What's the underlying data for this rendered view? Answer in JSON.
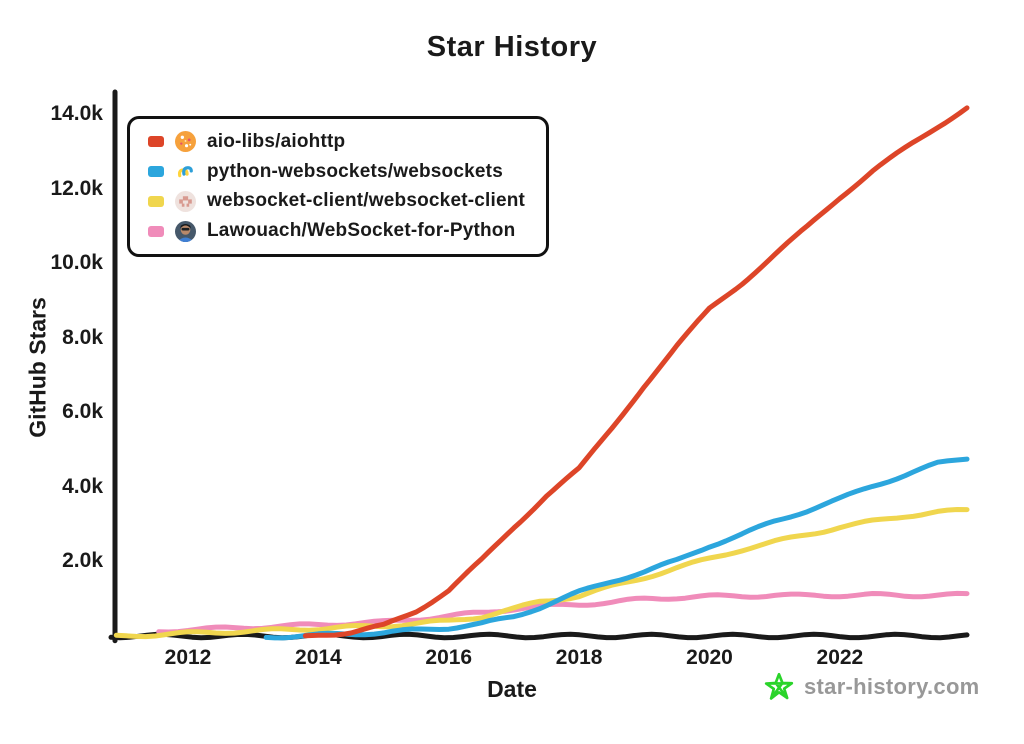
{
  "title": "Star History",
  "watermark": {
    "label": "star-history.com",
    "star_icon": "hand-drawn-star-icon",
    "icon_color": "#2ad42a",
    "text_color": "#989898"
  },
  "legend": {
    "items": [
      {
        "name": "aio-libs/aiohttp",
        "color": "#dd4528",
        "avatar_icon": "aio-libs-avatar-icon"
      },
      {
        "name": "python-websockets/websockets",
        "color": "#2ca6dd",
        "avatar_icon": "websockets-avatar-icon"
      },
      {
        "name": "websocket-client/websocket-client",
        "color": "#f0d64e",
        "avatar_icon": "websocket-client-avatar-icon"
      },
      {
        "name": "Lawouach/WebSocket-for-Python",
        "color": "#f08cba",
        "avatar_icon": "lawouach-avatar-icon"
      }
    ]
  },
  "chart_data": {
    "type": "line",
    "style": "hand-drawn-xkcd",
    "title": "Star History",
    "xlabel": "Date",
    "ylabel": "GitHub Stars",
    "xlim": [
      2010.88,
      2023.95
    ],
    "ylim": [
      0,
      14540
    ],
    "grid": false,
    "legend_position": "top-left",
    "axis_color": "#1a1a1a",
    "x_ticks": [
      {
        "value": 2012,
        "label": "2012"
      },
      {
        "value": 2014,
        "label": "2014"
      },
      {
        "value": 2016,
        "label": "2016"
      },
      {
        "value": 2018,
        "label": "2018"
      },
      {
        "value": 2020,
        "label": "2020"
      },
      {
        "value": 2022,
        "label": "2022"
      }
    ],
    "y_ticks": [
      {
        "value": 2000,
        "label": "2.0k"
      },
      {
        "value": 4000,
        "label": "4.0k"
      },
      {
        "value": 6000,
        "label": "6.0k"
      },
      {
        "value": 8000,
        "label": "8.0k"
      },
      {
        "value": 10000,
        "label": "10.0k"
      },
      {
        "value": 12000,
        "label": "12.0k"
      },
      {
        "value": 14000,
        "label": "14.0k"
      }
    ],
    "series": [
      {
        "name": "aio-libs/aiohttp",
        "color": "#dd4528",
        "points": [
          [
            2013.8,
            0
          ],
          [
            2014,
            50
          ],
          [
            2014.5,
            130
          ],
          [
            2015,
            300
          ],
          [
            2015.5,
            700
          ],
          [
            2016,
            1250
          ],
          [
            2016.5,
            2050
          ],
          [
            2017,
            2950
          ],
          [
            2017.5,
            3800
          ],
          [
            2018,
            4500
          ],
          [
            2018.5,
            5600
          ],
          [
            2019,
            6750
          ],
          [
            2019.5,
            7800
          ],
          [
            2020,
            8800
          ],
          [
            2020.5,
            9500
          ],
          [
            2021,
            10250
          ],
          [
            2021.5,
            11000
          ],
          [
            2022,
            11800
          ],
          [
            2022.5,
            12500
          ],
          [
            2023,
            13100
          ],
          [
            2023.5,
            13700
          ],
          [
            2023.95,
            14200
          ]
        ]
      },
      {
        "name": "python-websockets/websockets",
        "color": "#2ca6dd",
        "points": [
          [
            2013.2,
            0
          ],
          [
            2014,
            50
          ],
          [
            2015,
            120
          ],
          [
            2016,
            250
          ],
          [
            2016.5,
            350
          ],
          [
            2017,
            550
          ],
          [
            2017.4,
            800
          ],
          [
            2018,
            1200
          ],
          [
            2018.5,
            1500
          ],
          [
            2019,
            1750
          ],
          [
            2019.5,
            2050
          ],
          [
            2020,
            2450
          ],
          [
            2020.5,
            2750
          ],
          [
            2021,
            3100
          ],
          [
            2021.5,
            3400
          ],
          [
            2022,
            3700
          ],
          [
            2022.5,
            4050
          ],
          [
            2023,
            4350
          ],
          [
            2023.5,
            4650
          ],
          [
            2023.95,
            4800
          ]
        ]
      },
      {
        "name": "websocket-client/websocket-client",
        "color": "#f0d64e",
        "points": [
          [
            2010.9,
            20
          ],
          [
            2011.5,
            60
          ],
          [
            2012,
            100
          ],
          [
            2013,
            160
          ],
          [
            2014,
            230
          ],
          [
            2015,
            300
          ],
          [
            2016,
            430
          ],
          [
            2016.5,
            550
          ],
          [
            2017,
            750
          ],
          [
            2017.4,
            950
          ],
          [
            2018,
            1100
          ],
          [
            2018.5,
            1350
          ],
          [
            2019,
            1600
          ],
          [
            2019.5,
            1850
          ],
          [
            2020,
            2100
          ],
          [
            2020.5,
            2350
          ],
          [
            2021,
            2550
          ],
          [
            2021.5,
            2750
          ],
          [
            2022,
            2950
          ],
          [
            2022.5,
            3100
          ],
          [
            2023,
            3250
          ],
          [
            2023.5,
            3350
          ],
          [
            2023.95,
            3400
          ]
        ]
      },
      {
        "name": "Lawouach/WebSocket-for-Python",
        "color": "#f08cba",
        "points": [
          [
            2011.55,
            150
          ],
          [
            2012,
            200
          ],
          [
            2013,
            260
          ],
          [
            2014,
            330
          ],
          [
            2015,
            400
          ],
          [
            2016,
            560
          ],
          [
            2016.5,
            650
          ],
          [
            2017,
            760
          ],
          [
            2017.5,
            830
          ],
          [
            2018,
            880
          ],
          [
            2018.5,
            930
          ],
          [
            2019,
            1020
          ],
          [
            2019.5,
            1060
          ],
          [
            2020,
            1090
          ],
          [
            2020.5,
            1100
          ],
          [
            2021,
            1120
          ],
          [
            2021.5,
            1110
          ],
          [
            2022,
            1120
          ],
          [
            2022.5,
            1130
          ],
          [
            2023,
            1110
          ],
          [
            2023.5,
            1130
          ],
          [
            2023.95,
            1130
          ]
        ]
      }
    ]
  }
}
